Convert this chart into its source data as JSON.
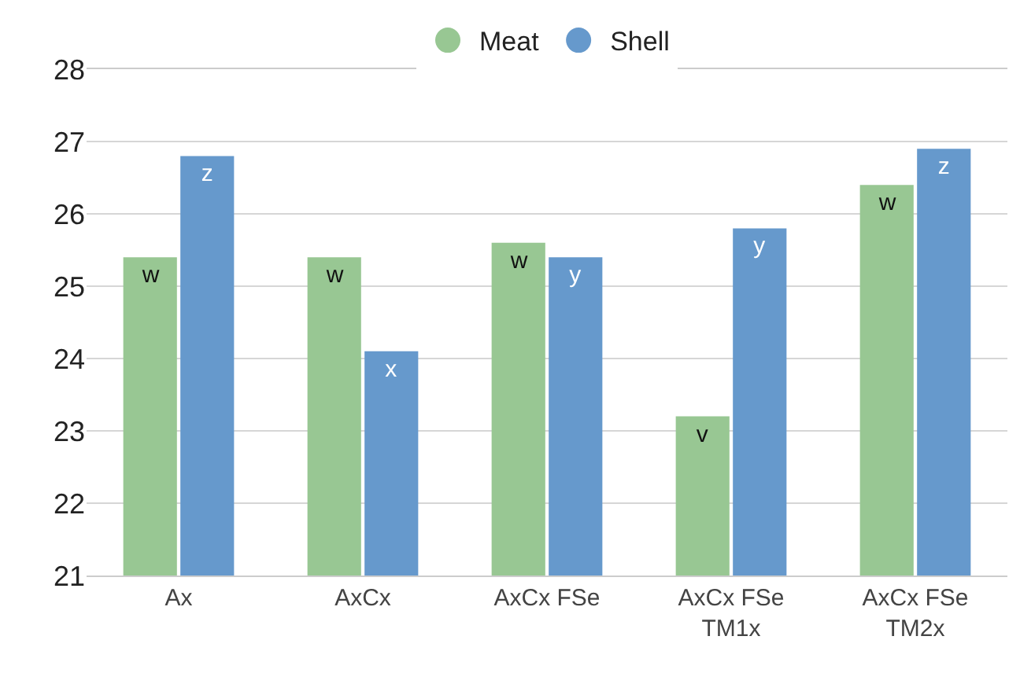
{
  "chart_data": {
    "type": "bar",
    "categories": [
      "Ax",
      "AxCx",
      "AxCx FSe",
      "AxCx FSe TM1x",
      "AxCx FSe TM2x"
    ],
    "series": [
      {
        "name": "Meat",
        "color": "#98c793",
        "values": [
          25.4,
          25.4,
          25.6,
          23.2,
          26.4
        ],
        "value_labels": [
          "w",
          "w",
          "w",
          "v",
          "w"
        ]
      },
      {
        "name": "Shell",
        "color": "#6699cc",
        "values": [
          26.8,
          24.1,
          25.4,
          25.8,
          26.9
        ],
        "value_labels": [
          "z",
          "x",
          "y",
          "y",
          "z"
        ]
      }
    ],
    "ylim": [
      21,
      28
    ],
    "yticks": [
      21,
      22,
      23,
      24,
      25,
      26,
      27,
      28
    ],
    "grid": "y",
    "legend": "top",
    "marker": "circle"
  }
}
